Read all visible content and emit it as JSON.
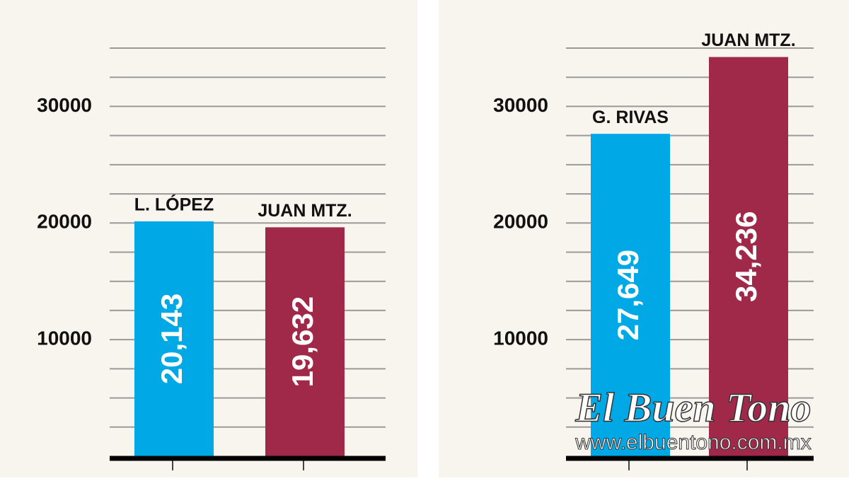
{
  "chart_data": [
    {
      "type": "bar",
      "categories": [
        "L. LÓPEZ",
        "JUAN MTZ."
      ],
      "values": [
        20143,
        19632
      ],
      "value_labels": [
        "20,143",
        "19,632"
      ],
      "colors": [
        "#00a9e6",
        "#a0294a"
      ],
      "ylim": [
        0,
        35000
      ],
      "yticks": [
        10000,
        20000,
        30000
      ],
      "minor_yticks": [
        2500,
        5000,
        7500,
        12500,
        15000,
        17500,
        22500,
        25000,
        27500,
        32500,
        35000
      ],
      "grid": true
    },
    {
      "type": "bar",
      "categories": [
        "G. RIVAS",
        "JUAN MTZ."
      ],
      "values": [
        27649,
        34236
      ],
      "value_labels": [
        "27,649",
        "34,236"
      ],
      "colors": [
        "#00a9e6",
        "#a0294a"
      ],
      "ylim": [
        0,
        35000
      ],
      "yticks": [
        10000,
        20000,
        30000
      ],
      "minor_yticks": [
        2500,
        5000,
        7500,
        12500,
        15000,
        17500,
        22500,
        25000,
        27500,
        32500,
        35000
      ],
      "grid": true
    }
  ],
  "watermark": {
    "name": "El Buen Tono",
    "url": "www.elbuentono.com.mx"
  }
}
